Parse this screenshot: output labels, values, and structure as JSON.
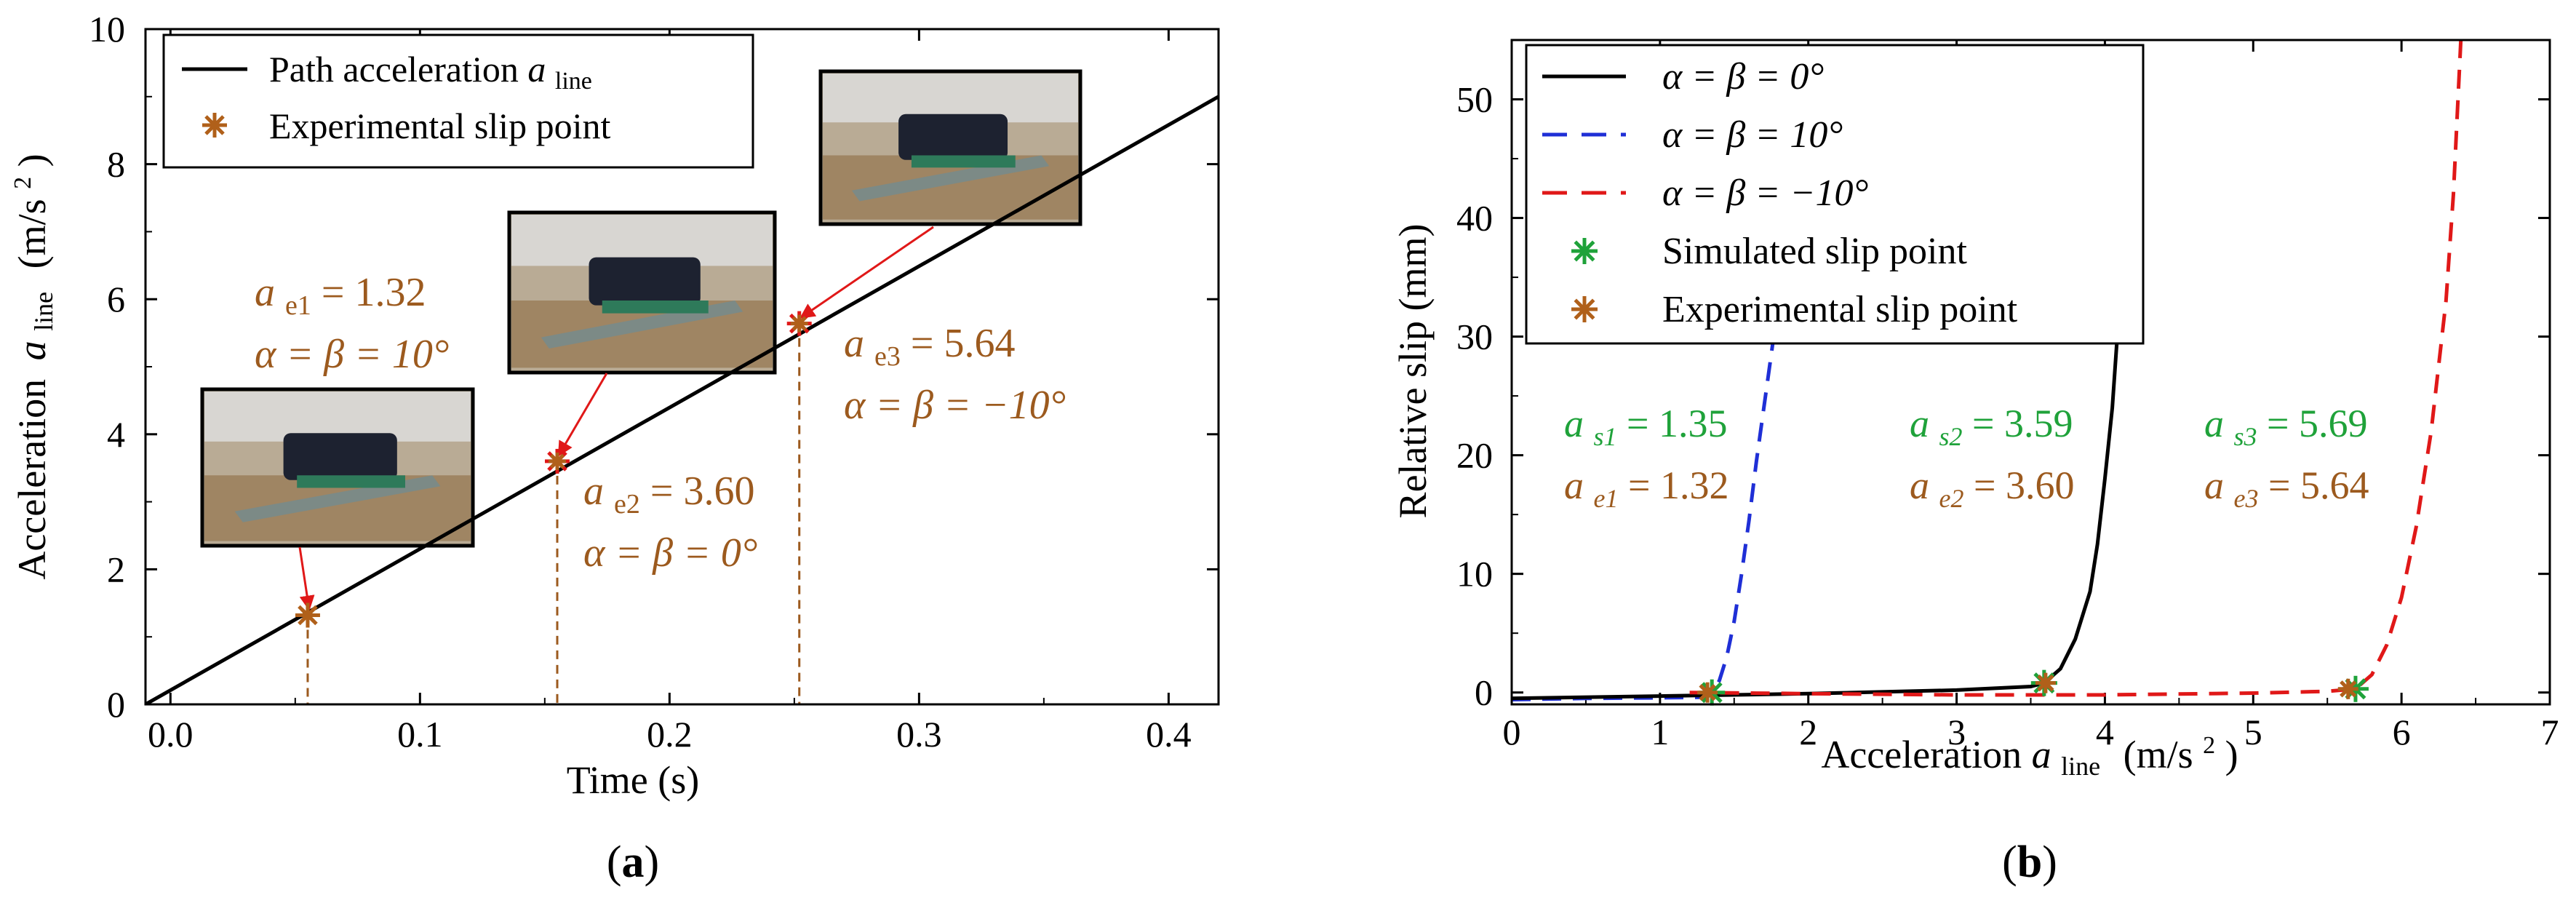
{
  "colors": {
    "axis": "#000000",
    "brown": "#9C5A1E",
    "marker_brown": "#B0601A",
    "green": "#1FA23A",
    "blue": "#1F2FD6",
    "red": "#E01818",
    "arrow_red": "#E01818"
  },
  "chart_data": [
    {
      "panel_label": "a",
      "type": "line",
      "xlabel": "Time (s)",
      "ylabel": {
        "main": "Acceleration",
        "var": "a",
        "sub": "line",
        "unit": "(m/s",
        "unit_sup": "2",
        "unit_close": ")"
      },
      "xlim": [
        -0.01,
        0.42
      ],
      "ylim": [
        0,
        10
      ],
      "xticks": [
        0.0,
        0.1,
        0.2,
        0.3,
        0.4
      ],
      "xtick_labels": [
        "0.0",
        "0.1",
        "0.2",
        "0.3",
        "0.4"
      ],
      "yticks": [
        0,
        2,
        4,
        6,
        8,
        10
      ],
      "ytick_labels": [
        "0",
        "2",
        "4",
        "6",
        "8",
        "10"
      ],
      "legend": {
        "placement": "top-left",
        "entries": [
          {
            "label": "Path acceleration ",
            "var": "a",
            "sub": "line",
            "style": "line"
          },
          {
            "label": "Experimental slip point",
            "style": "star"
          }
        ]
      },
      "series": [
        {
          "name": "Path acceleration",
          "x": [
            -0.01,
            0.42
          ],
          "y": [
            0.0,
            9.0
          ],
          "color": "#000000"
        }
      ],
      "slip_points": [
        {
          "x": 0.055,
          "y": 1.32,
          "label_line1": {
            "var": "a",
            "sub": "e1",
            "value": " = 1.32"
          },
          "label_line2": "α = β = 10°"
        },
        {
          "x": 0.155,
          "y": 3.6,
          "label_line1": {
            "var": "a",
            "sub": "e2",
            "value": " = 3.60"
          },
          "label_line2": "α = β = 0°"
        },
        {
          "x": 0.252,
          "y": 5.64,
          "label_line1": {
            "var": "a",
            "sub": "e3",
            "value": " = 5.64"
          },
          "label_line2": "α = β = −10°"
        }
      ],
      "photos": [
        {
          "name": "photo-tilt-10",
          "desc": "conveyor photo"
        },
        {
          "name": "photo-tilt-0",
          "desc": "conveyor photo"
        },
        {
          "name": "photo-tilt-minus-10",
          "desc": "conveyor photo"
        }
      ]
    },
    {
      "panel_label": "b",
      "type": "line",
      "xlabel": {
        "main": "Acceleration ",
        "var": "a",
        "sub": "line",
        "unit": "(m/s",
        "unit_sup": "2",
        "unit_close": ")"
      },
      "ylabel": "Relative slip (mm)",
      "xlim": [
        0,
        7
      ],
      "ylim": [
        -1,
        55
      ],
      "xticks": [
        0,
        1,
        2,
        3,
        4,
        5,
        6,
        7
      ],
      "xtick_labels": [
        "0",
        "1",
        "2",
        "3",
        "4",
        "5",
        "6",
        "7"
      ],
      "yticks": [
        0,
        10,
        20,
        30,
        40,
        50
      ],
      "ytick_labels": [
        "0",
        "10",
        "20",
        "30",
        "40",
        "50"
      ],
      "legend": {
        "placement": "top-left",
        "entries": [
          {
            "label": "α = β = 0°",
            "style": "solid",
            "color": "#000000"
          },
          {
            "label": "α = β = 10°",
            "style": "dashed",
            "color": "#1F2FD6"
          },
          {
            "label": "α = β = −10°",
            "style": "dashed",
            "color": "#E01818"
          },
          {
            "label": "Simulated slip point",
            "style": "star",
            "color": "#1FA23A"
          },
          {
            "label": "Experimental slip point",
            "style": "star",
            "color": "#B0601A"
          }
        ]
      },
      "series": [
        {
          "name": "α = β = 10°",
          "style": "dashed",
          "color": "#1F2FD6",
          "x": [
            0,
            0.5,
            1.0,
            1.3,
            1.35,
            1.4,
            1.45,
            1.5,
            1.55,
            1.6,
            1.65,
            1.7,
            1.75,
            1.8
          ],
          "y": [
            -0.6,
            -0.5,
            -0.45,
            -0.4,
            0.0,
            1.0,
            3.0,
            6.0,
            10.0,
            14.5,
            19.5,
            24.0,
            28.5,
            33.0
          ]
        },
        {
          "name": "α = β = 0°",
          "style": "solid",
          "color": "#000000",
          "x": [
            0,
            1.0,
            2.0,
            3.0,
            3.5,
            3.59,
            3.7,
            3.8,
            3.9,
            3.95,
            4.0,
            4.05,
            4.1
          ],
          "y": [
            -0.5,
            -0.3,
            -0.1,
            0.2,
            0.5,
            0.8,
            2.0,
            4.5,
            8.5,
            12.5,
            18.0,
            24.0,
            33.0
          ]
        },
        {
          "name": "α = β = −10°",
          "style": "dashed",
          "color": "#E01818",
          "x": [
            1.2,
            2.0,
            3.0,
            4.0,
            5.0,
            5.5,
            5.69,
            5.8,
            5.9,
            6.0,
            6.1,
            6.2,
            6.3,
            6.35,
            6.4
          ],
          "y": [
            0.0,
            -0.1,
            -0.2,
            -0.2,
            -0.05,
            0.1,
            0.3,
            1.5,
            4.0,
            8.0,
            14.0,
            22.0,
            33.0,
            42.0,
            55.0
          ]
        }
      ],
      "simulated_points": [
        {
          "x": 1.35,
          "y": 0.0
        },
        {
          "x": 3.59,
          "y": 0.8
        },
        {
          "x": 5.69,
          "y": 0.3
        }
      ],
      "experimental_points": [
        {
          "x": 1.32,
          "y": 0.0
        },
        {
          "x": 3.6,
          "y": 0.8
        },
        {
          "x": 5.64,
          "y": 0.3
        }
      ],
      "annotations": [
        {
          "sim": {
            "var": "a",
            "sub": "s1",
            "value": " = 1.35"
          },
          "exp": {
            "var": "a",
            "sub": "e1",
            "value": " = 1.32"
          }
        },
        {
          "sim": {
            "var": "a",
            "sub": "s2",
            "value": " = 3.59"
          },
          "exp": {
            "var": "a",
            "sub": "e2",
            "value": " = 3.60"
          }
        },
        {
          "sim": {
            "var": "a",
            "sub": "s3",
            "value": " = 5.69"
          },
          "exp": {
            "var": "a",
            "sub": "e3",
            "value": " = 5.64"
          }
        }
      ]
    }
  ]
}
